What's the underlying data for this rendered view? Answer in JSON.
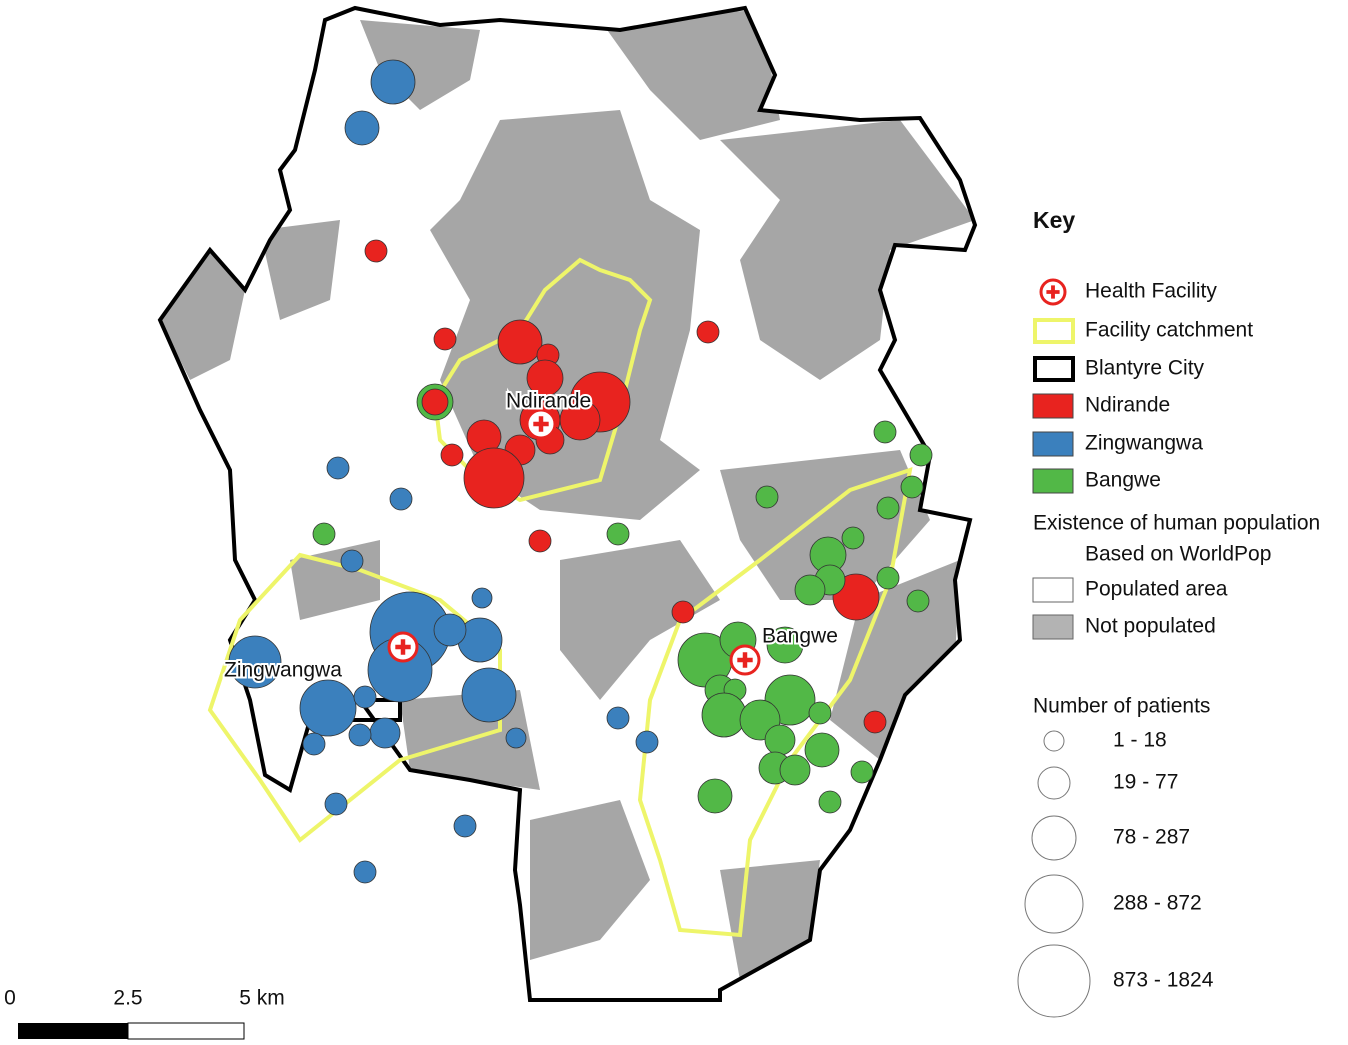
{
  "map": {
    "facility_labels": [
      "Ndirande",
      "Zingwangwa",
      "Bangwe"
    ],
    "key": {
      "title": "Key",
      "items": [
        "Health Facility",
        "Facility catchment",
        "Blantyre City",
        "Ndirande",
        "Zingwangwa",
        "Bangwe"
      ]
    },
    "population": {
      "title": "Existence of human population",
      "subtitle": "Based on WorldPop",
      "items": [
        "Populated area",
        "Not populated"
      ]
    },
    "patients": {
      "title": "Number of patients",
      "items": [
        "1 - 18",
        "19 - 77",
        "78 - 287",
        "288 - 872",
        "873 - 1824"
      ]
    },
    "scale_bar": [
      "0",
      "2.5",
      "5 km"
    ]
  }
}
